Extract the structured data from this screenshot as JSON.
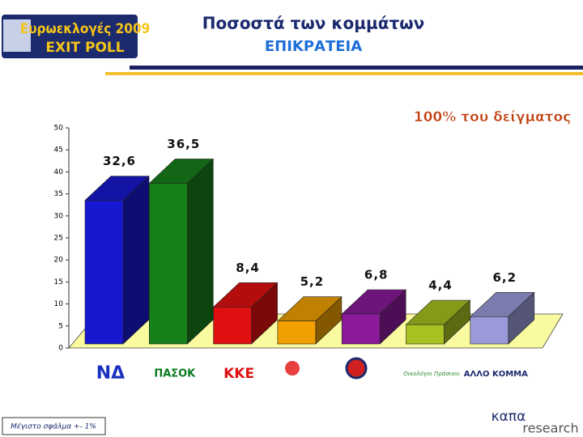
{
  "header": {
    "logo_line1": "Ευρωεκλογές 2009",
    "logo_line2": "EXIT POLL",
    "brand_line1": "καπα",
    "brand_line2": "research"
  },
  "chart_data": {
    "type": "bar3d",
    "title": "Ποσοστά των κομμάτων",
    "subtitle": "ΕΠΙΚΡΑΤΕΙΑ",
    "annotation": "100% του δείγματος",
    "footnote": "Μέγιστο σφάλμα +- 1%",
    "categories": [
      "ΝΔ",
      "ΠΑΣΟΚ",
      "ΚΚΕ",
      null,
      null,
      "Οικολόγοι Πράσινοι",
      "ΑΛΛΟ ΚΟΜΜΑ"
    ],
    "values": [
      32.6,
      36.5,
      8.4,
      5.2,
      6.8,
      4.4,
      6.2
    ],
    "value_labels": [
      "32,6",
      "36,5",
      "8,4",
      "5,2",
      "6,8",
      "4,4",
      "6,2"
    ],
    "colors": [
      "#1818d0",
      "#16801a",
      "#e01010",
      "#f0a000",
      "#8a1a9a",
      "#a8c020",
      "#9a9ad8"
    ],
    "ylim": [
      0,
      50
    ],
    "yticks": [
      0,
      5,
      10,
      15,
      20,
      25,
      30,
      35,
      40,
      45,
      50
    ]
  }
}
